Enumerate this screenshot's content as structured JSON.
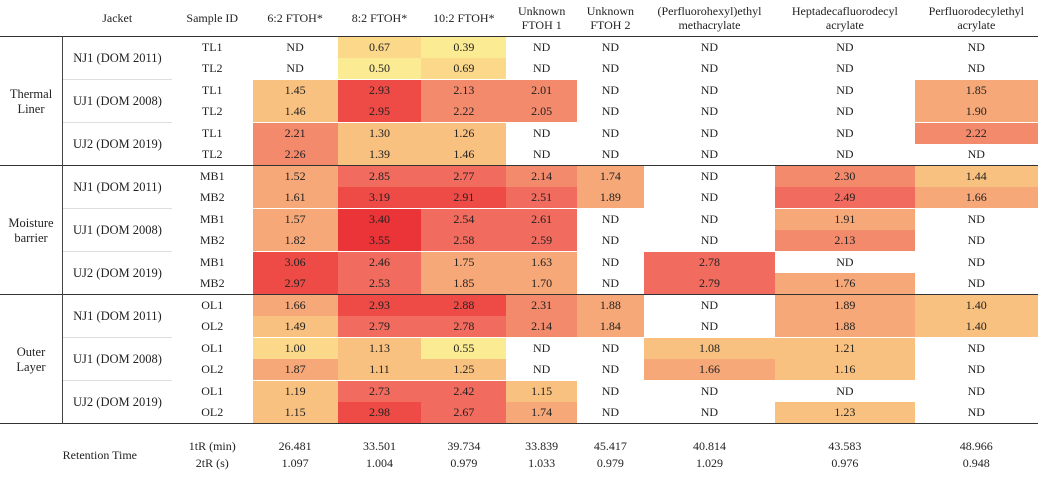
{
  "header": {
    "jacket": "Jacket",
    "sample_id": "Sample ID",
    "compounds": [
      "6:2 FTOH*",
      "8:2 FTOH*",
      "10:2 FTOH*",
      "Unknown FTOH 1",
      "Unknown FTOH 2",
      "(Perfluorohexyl)ethyl methacrylate",
      "Heptadecafluorodecyl acrylate",
      "Perfluorodecylethyl acrylate"
    ]
  },
  "layers": [
    {
      "name": "Thermal Liner",
      "groups": [
        {
          "jacket": "NJ1 (DOM 2011)",
          "rows": [
            {
              "id": "TL1",
              "values": [
                "ND",
                "0.67",
                "0.39",
                "ND",
                "ND",
                "ND",
                "ND",
                "ND"
              ]
            },
            {
              "id": "TL2",
              "values": [
                "ND",
                "0.50",
                "0.69",
                "ND",
                "ND",
                "ND",
                "ND",
                "ND"
              ]
            }
          ]
        },
        {
          "jacket": "UJ1 (DOM 2008)",
          "rows": [
            {
              "id": "TL1",
              "values": [
                "1.45",
                "2.93",
                "2.13",
                "2.01",
                "ND",
                "ND",
                "ND",
                "1.85"
              ]
            },
            {
              "id": "TL2",
              "values": [
                "1.46",
                "2.95",
                "2.22",
                "2.05",
                "ND",
                "ND",
                "ND",
                "1.90"
              ]
            }
          ]
        },
        {
          "jacket": "UJ2 (DOM 2019)",
          "rows": [
            {
              "id": "TL1",
              "values": [
                "2.21",
                "1.30",
                "1.26",
                "ND",
                "ND",
                "ND",
                "ND",
                "2.22"
              ]
            },
            {
              "id": "TL2",
              "values": [
                "2.26",
                "1.39",
                "1.46",
                "ND",
                "ND",
                "ND",
                "ND",
                "ND"
              ]
            }
          ]
        }
      ]
    },
    {
      "name": "Moisture barrier",
      "groups": [
        {
          "jacket": "NJ1 (DOM 2011)",
          "rows": [
            {
              "id": "MB1",
              "values": [
                "1.52",
                "2.85",
                "2.77",
                "2.14",
                "1.74",
                "ND",
                "2.30",
                "1.44"
              ]
            },
            {
              "id": "MB2",
              "values": [
                "1.61",
                "3.19",
                "2.91",
                "2.51",
                "1.89",
                "ND",
                "2.49",
                "1.66"
              ]
            }
          ]
        },
        {
          "jacket": "UJ1 (DOM 2008)",
          "rows": [
            {
              "id": "MB1",
              "values": [
                "1.57",
                "3.40",
                "2.54",
                "2.61",
                "ND",
                "ND",
                "1.91",
                "ND"
              ]
            },
            {
              "id": "MB2",
              "values": [
                "1.82",
                "3.55",
                "2.58",
                "2.59",
                "ND",
                "ND",
                "2.13",
                "ND"
              ]
            }
          ]
        },
        {
          "jacket": "UJ2 (DOM 2019)",
          "rows": [
            {
              "id": "MB1",
              "values": [
                "3.06",
                "2.46",
                "1.75",
                "1.63",
                "ND",
                "2.78",
                "ND",
                "ND"
              ]
            },
            {
              "id": "MB2",
              "values": [
                "2.97",
                "2.53",
                "1.85",
                "1.70",
                "ND",
                "2.79",
                "1.76",
                "ND"
              ]
            }
          ]
        }
      ]
    },
    {
      "name": "Outer Layer",
      "groups": [
        {
          "jacket": "NJ1 (DOM 2011)",
          "rows": [
            {
              "id": "OL1",
              "values": [
                "1.66",
                "2.93",
                "2.88",
                "2.31",
                "1.88",
                "ND",
                "1.89",
                "1.40"
              ]
            },
            {
              "id": "OL2",
              "values": [
                "1.49",
                "2.79",
                "2.78",
                "2.14",
                "1.84",
                "ND",
                "1.88",
                "1.40"
              ]
            }
          ]
        },
        {
          "jacket": "UJ1 (DOM 2008)",
          "rows": [
            {
              "id": "OL1",
              "values": [
                "1.00",
                "1.13",
                "0.55",
                "ND",
                "ND",
                "1.08",
                "1.21",
                "ND"
              ]
            },
            {
              "id": "OL2",
              "values": [
                "1.87",
                "1.11",
                "1.25",
                "ND",
                "ND",
                "1.66",
                "1.16",
                "ND"
              ]
            }
          ]
        },
        {
          "jacket": "UJ2 (DOM 2019)",
          "rows": [
            {
              "id": "OL1",
              "values": [
                "1.19",
                "2.73",
                "2.42",
                "1.15",
                "ND",
                "ND",
                "ND",
                "ND"
              ]
            },
            {
              "id": "OL2",
              "values": [
                "1.15",
                "2.98",
                "2.67",
                "1.74",
                "ND",
                "ND",
                "1.23",
                "ND"
              ]
            }
          ]
        }
      ]
    }
  ],
  "retention": {
    "label": "Retention Time",
    "rows": [
      {
        "label": "1tR (min)",
        "values": [
          "26.481",
          "33.501",
          "39.734",
          "33.839",
          "45.417",
          "40.814",
          "43.583",
          "48.966"
        ]
      },
      {
        "label": "2tR (s)",
        "values": [
          "1.097",
          "1.004",
          "0.979",
          "1.033",
          "0.979",
          "1.029",
          "0.976",
          "0.948"
        ]
      }
    ]
  },
  "colors": {
    "nd": "#ffffff",
    "scale": [
      "#fbeb93",
      "#fcd98a",
      "#f9c17f",
      "#f6a878",
      "#f48a6c",
      "#f16b5e",
      "#ee4b47",
      "#eb3438"
    ]
  }
}
